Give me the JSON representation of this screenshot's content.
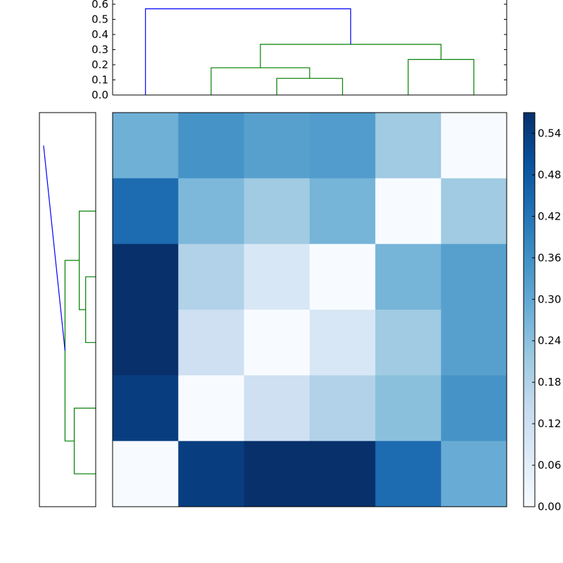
{
  "chart_data": [
    {
      "type": "dendrogram",
      "orientation": "top",
      "ylim": [
        0,
        0.6
      ],
      "yticks": [
        "0.0",
        "0.1",
        "0.2",
        "0.3",
        "0.4",
        "0.5",
        "0.6"
      ],
      "leaf_positions": [
        0.5,
        1.5,
        2.5,
        3.5,
        4.5,
        5.5
      ],
      "links": [
        {
          "x": [
            2.5,
            2.5,
            3.5,
            3.5
          ],
          "y": [
            0.0,
            0.11,
            0.11,
            0.0
          ],
          "color": "#008000"
        },
        {
          "x": [
            1.5,
            1.5,
            3.0,
            3.0
          ],
          "y": [
            0.0,
            0.18,
            0.18,
            0.11
          ],
          "color": "#008000"
        },
        {
          "x": [
            4.5,
            4.5,
            5.5,
            5.5
          ],
          "y": [
            0.0,
            0.235,
            0.235,
            0.0
          ],
          "color": "#008000"
        },
        {
          "x": [
            2.25,
            2.25,
            5.0,
            5.0
          ],
          "y": [
            0.18,
            0.335,
            0.335,
            0.235
          ],
          "color": "#008000"
        },
        {
          "x": [
            0.5,
            0.5,
            3.625,
            3.625
          ],
          "y": [
            0.0,
            0.57,
            0.57,
            0.335
          ],
          "color": "#0000ff"
        }
      ]
    },
    {
      "type": "dendrogram",
      "orientation": "left",
      "leaf_positions": [
        0.5,
        1.5,
        2.5,
        3.5,
        4.5,
        5.5
      ],
      "links": [
        {
          "x": [
            0.0,
            0.11,
            0.11,
            0.0
          ],
          "y": [
            2.5,
            2.5,
            3.5,
            3.5
          ],
          "color": "#008000"
        },
        {
          "x": [
            0.0,
            0.18,
            0.18,
            0.11
          ],
          "y": [
            1.5,
            1.5,
            3.0,
            3.0
          ],
          "color": "#008000"
        },
        {
          "x": [
            0.0,
            0.235,
            0.235,
            0.0
          ],
          "y": [
            4.5,
            4.5,
            5.5,
            5.5
          ],
          "color": "#008000"
        },
        {
          "x": [
            0.18,
            0.335,
            0.335,
            0.235
          ],
          "y": [
            2.25,
            2.25,
            5.0,
            5.0
          ],
          "color": "#008000"
        },
        {
          "x": [
            0.57,
            0.57,
            0.335,
            0.335
          ],
          "y": [
            0.5,
            0.5,
            3.625,
            3.625
          ],
          "color": "#0000ff"
        }
      ]
    },
    {
      "type": "heatmap",
      "colormap": "Blues",
      "vmin": 0.0,
      "vmax": 0.57,
      "rows": 6,
      "cols": 6,
      "values": [
        [
          0.28,
          0.35,
          0.32,
          0.33,
          0.21,
          0.0
        ],
        [
          0.44,
          0.26,
          0.21,
          0.27,
          0.0,
          0.21
        ],
        [
          0.57,
          0.18,
          0.09,
          0.0,
          0.27,
          0.32
        ],
        [
          0.57,
          0.12,
          0.0,
          0.09,
          0.21,
          0.32
        ],
        [
          0.54,
          0.0,
          0.12,
          0.18,
          0.24,
          0.35
        ],
        [
          0.0,
          0.54,
          0.57,
          0.57,
          0.44,
          0.29
        ]
      ]
    },
    {
      "type": "colorbar",
      "vmin": 0.0,
      "vmax": 0.57,
      "ticks": [
        0.0,
        0.06,
        0.12,
        0.18,
        0.24,
        0.3,
        0.36,
        0.42,
        0.48,
        0.54
      ],
      "tick_labels": [
        "0.00",
        "0.06",
        "0.12",
        "0.18",
        "0.24",
        "0.30",
        "0.36",
        "0.42",
        "0.48",
        "0.54"
      ]
    }
  ]
}
